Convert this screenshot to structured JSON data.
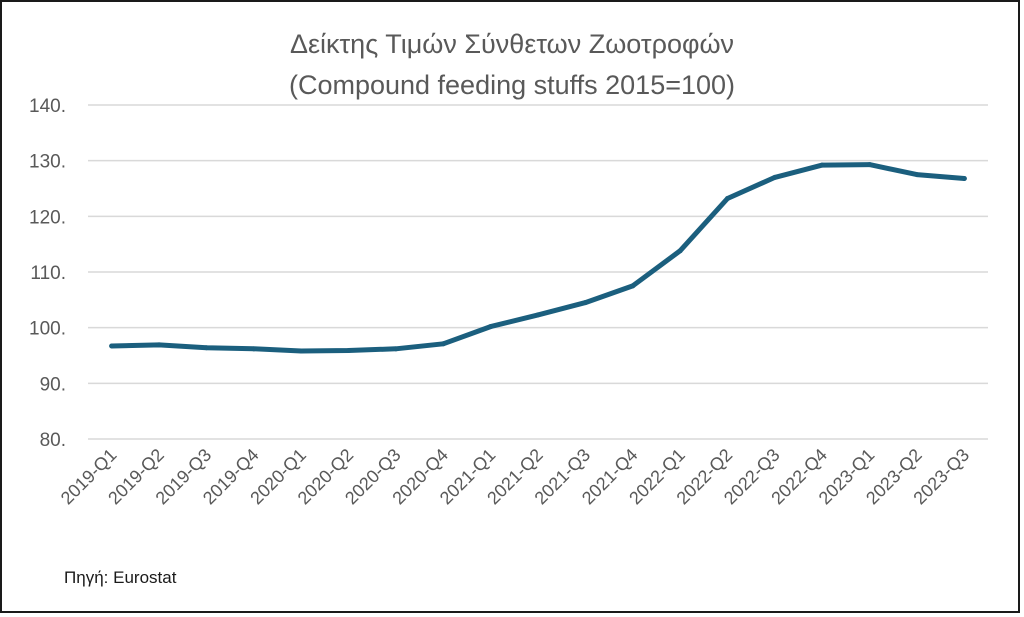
{
  "chart_data": {
    "type": "line",
    "title": "Δείκτης Τιμών Σύνθετων Ζωοτροφών",
    "subtitle": "(Compound feeding stuffs 2015=100)",
    "xlabel": "",
    "ylabel": "",
    "ylim": [
      80,
      140
    ],
    "yticks": [
      "80.",
      "90.",
      "100.",
      "110.",
      "120.",
      "130.",
      "140."
    ],
    "grid": true,
    "categories": [
      "2019-Q1",
      "2019-Q2",
      "2019-Q3",
      "2019-Q4",
      "2020-Q1",
      "2020-Q2",
      "2020-Q3",
      "2020-Q4",
      "2021-Q1",
      "2021-Q2",
      "2021-Q3",
      "2021-Q4",
      "2022-Q1",
      "2022-Q2",
      "2022-Q3",
      "2022-Q4",
      "2023-Q1",
      "2023-Q2",
      "2023-Q3"
    ],
    "series": [
      {
        "values": [
          96.7,
          96.9,
          96.4,
          96.2,
          95.8,
          95.9,
          96.2,
          97.1,
          100.2,
          102.3,
          104.5,
          107.5,
          113.8,
          123.2,
          127.0,
          129.2,
          129.3,
          127.5,
          126.8
        ],
        "color": "#1b5f7e"
      }
    ]
  },
  "source": "Πηγή: Eurostat"
}
